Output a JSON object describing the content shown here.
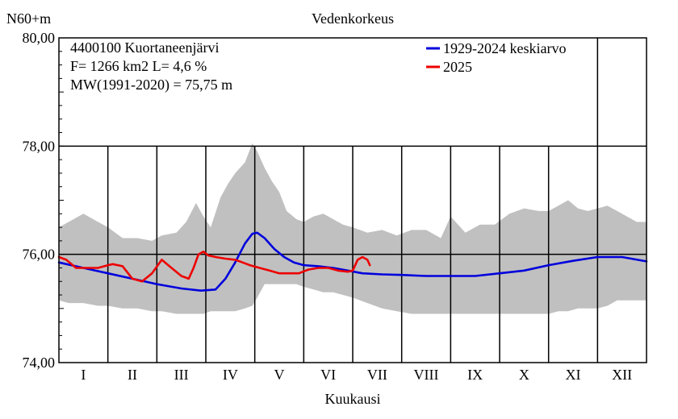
{
  "chart_data": {
    "type": "area",
    "title": "Vedenkorkeus",
    "ylabel": "N60+m",
    "xlabel": "Kuukausi",
    "ylim": [
      74.0,
      80.0
    ],
    "xlim": [
      0,
      12
    ],
    "yticks": [
      74.0,
      76.0,
      78.0,
      80.0
    ],
    "ytick_labels": [
      "74,00",
      "76,00",
      "78,00",
      "80,00"
    ],
    "months": [
      "I",
      "II",
      "III",
      "IV",
      "V",
      "VI",
      "VII",
      "VIII",
      "IX",
      "X",
      "XI",
      "XII"
    ],
    "grid": true,
    "station_info": [
      "4400100 Kuortaneenjärvi",
      "F=   1266 km2 L=  4,6 %",
      "MW(1991-2020) = 75,75 m"
    ],
    "legend": [
      {
        "label": "1929-2024 keskiarvo",
        "color": "#0000dd"
      },
      {
        "label": "2025",
        "color": "#ee0000"
      }
    ],
    "band": {
      "name": "min-max range",
      "color": "#c0c0c0",
      "x": [
        0.0,
        0.2,
        0.5,
        0.8,
        1.0,
        1.3,
        1.6,
        1.9,
        2.1,
        2.4,
        2.6,
        2.8,
        2.95,
        3.1,
        3.3,
        3.45,
        3.6,
        3.8,
        3.95,
        4.05,
        4.2,
        4.35,
        4.5,
        4.65,
        4.85,
        5.0,
        5.2,
        5.4,
        5.6,
        5.8,
        6.0,
        6.3,
        6.6,
        6.9,
        7.2,
        7.5,
        7.8,
        8.0,
        8.3,
        8.6,
        8.9,
        9.2,
        9.5,
        9.8,
        10.0,
        10.2,
        10.4,
        10.6,
        10.8,
        11.0,
        11.2,
        11.4,
        11.6,
        11.8,
        12.0
      ],
      "upper": [
        76.5,
        76.6,
        76.75,
        76.6,
        76.5,
        76.3,
        76.3,
        76.25,
        76.35,
        76.4,
        76.6,
        76.95,
        76.7,
        76.5,
        77.05,
        77.3,
        77.5,
        77.7,
        78.05,
        77.9,
        77.6,
        77.35,
        77.15,
        76.8,
        76.65,
        76.6,
        76.7,
        76.75,
        76.65,
        76.55,
        76.5,
        76.4,
        76.45,
        76.35,
        76.45,
        76.45,
        76.3,
        76.7,
        76.4,
        76.55,
        76.55,
        76.75,
        76.85,
        76.8,
        76.8,
        76.9,
        77.0,
        76.85,
        76.8,
        76.85,
        76.9,
        76.8,
        76.7,
        76.6,
        76.6
      ],
      "lower": [
        75.15,
        75.1,
        75.1,
        75.05,
        75.05,
        75.0,
        75.0,
        74.95,
        74.95,
        74.9,
        74.9,
        74.9,
        74.9,
        74.95,
        74.95,
        74.95,
        74.95,
        75.0,
        75.05,
        75.2,
        75.45,
        75.45,
        75.45,
        75.45,
        75.45,
        75.4,
        75.35,
        75.3,
        75.3,
        75.25,
        75.2,
        75.1,
        75.0,
        74.95,
        74.9,
        74.9,
        74.9,
        74.9,
        74.9,
        74.9,
        74.9,
        74.9,
        74.9,
        74.9,
        74.9,
        74.95,
        74.95,
        75.0,
        75.0,
        75.0,
        75.05,
        75.15,
        75.15,
        75.15,
        75.15
      ]
    },
    "series": [
      {
        "name": "1929-2024 keskiarvo",
        "color": "#0000dd",
        "x": [
          0.0,
          0.5,
          1.0,
          1.5,
          2.0,
          2.5,
          2.9,
          3.2,
          3.4,
          3.6,
          3.8,
          3.95,
          4.05,
          4.2,
          4.4,
          4.6,
          4.8,
          5.0,
          5.3,
          5.6,
          5.9,
          6.2,
          6.6,
          7.0,
          7.5,
          8.0,
          8.5,
          9.0,
          9.5,
          10.0,
          10.5,
          11.0,
          11.5,
          12.0
        ],
        "values": [
          75.85,
          75.75,
          75.65,
          75.55,
          75.45,
          75.37,
          75.33,
          75.35,
          75.55,
          75.85,
          76.2,
          76.38,
          76.4,
          76.3,
          76.1,
          75.95,
          75.85,
          75.8,
          75.78,
          75.75,
          75.7,
          75.65,
          75.63,
          75.62,
          75.6,
          75.6,
          75.6,
          75.65,
          75.7,
          75.8,
          75.88,
          75.95,
          75.95,
          75.87
        ]
      },
      {
        "name": "2025",
        "color": "#ee0000",
        "x": [
          0.0,
          0.15,
          0.35,
          0.55,
          0.8,
          1.0,
          1.1,
          1.3,
          1.5,
          1.7,
          1.9,
          2.1,
          2.3,
          2.5,
          2.65,
          2.75,
          2.85,
          2.95,
          3.05,
          3.2,
          3.4,
          3.6,
          3.75,
          3.9,
          4.1,
          4.3,
          4.5,
          4.7,
          4.9,
          5.1,
          5.3,
          5.5,
          5.7,
          5.9,
          6.0,
          6.1,
          6.2,
          6.3,
          6.35
        ],
        "values": [
          75.95,
          75.9,
          75.75,
          75.75,
          75.75,
          75.8,
          75.82,
          75.78,
          75.55,
          75.5,
          75.65,
          75.9,
          75.75,
          75.6,
          75.55,
          75.75,
          76.0,
          76.05,
          75.98,
          75.95,
          75.92,
          75.9,
          75.85,
          75.8,
          75.75,
          75.7,
          75.65,
          75.65,
          75.65,
          75.72,
          75.75,
          75.75,
          75.7,
          75.68,
          75.7,
          75.9,
          75.95,
          75.9,
          75.8
        ]
      }
    ]
  }
}
